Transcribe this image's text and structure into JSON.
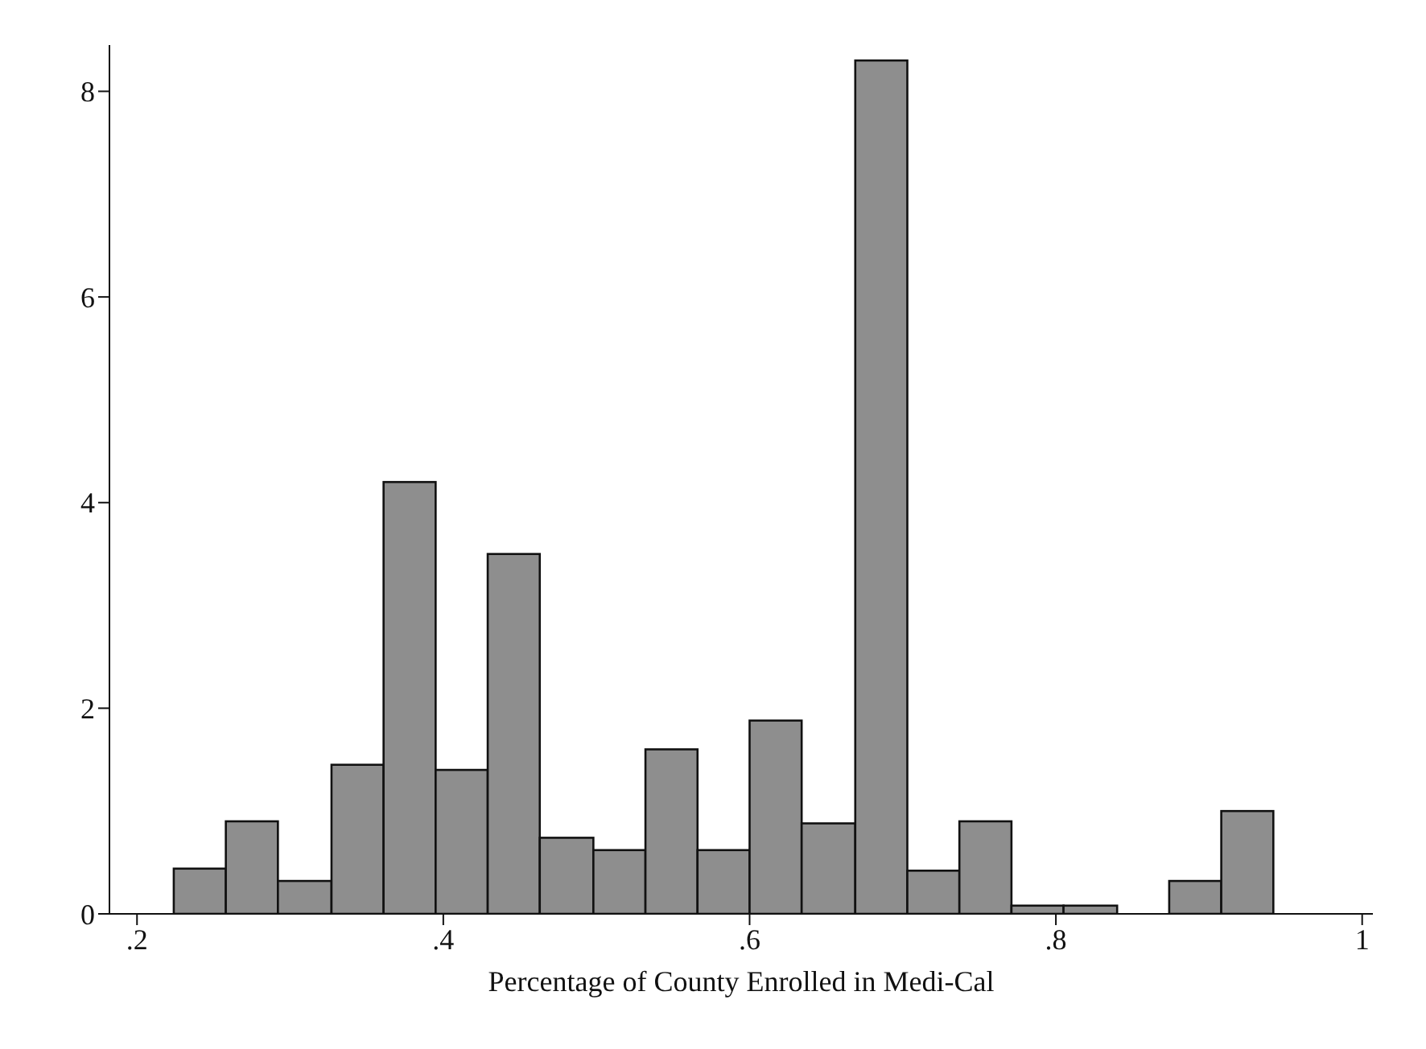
{
  "chart_data": {
    "type": "histogram",
    "xlabel": "Percentage of County Enrolled in Medi-Cal",
    "bins": [
      0.224,
      0.258,
      0.292,
      0.327,
      0.361,
      0.395,
      0.429,
      0.463,
      0.498,
      0.532,
      0.566,
      0.6,
      0.634,
      0.669,
      0.703,
      0.737,
      0.771,
      0.805,
      0.84,
      0.874,
      0.908,
      0.942
    ],
    "values": [
      0.44,
      0.9,
      0.32,
      1.45,
      4.2,
      1.4,
      3.5,
      0.74,
      0.62,
      1.6,
      0.62,
      1.88,
      0.88,
      8.3,
      0.42,
      0.9,
      0.08,
      0.08,
      0,
      0.32,
      1.0
    ],
    "color": "#8e8e8e",
    "xlim": [
      0.182,
      1.007
    ],
    "xticks": [
      {
        "value": 0.2,
        "label": ".2"
      },
      {
        "value": 0.4,
        "label": ".4"
      },
      {
        "value": 0.6,
        "label": ".6"
      },
      {
        "value": 0.8,
        "label": ".8"
      },
      {
        "value": 1,
        "label": "1"
      }
    ],
    "ylim": [
      0,
      8.45
    ],
    "yticks": [
      0,
      2,
      4,
      6,
      8
    ],
    "grid": false
  }
}
